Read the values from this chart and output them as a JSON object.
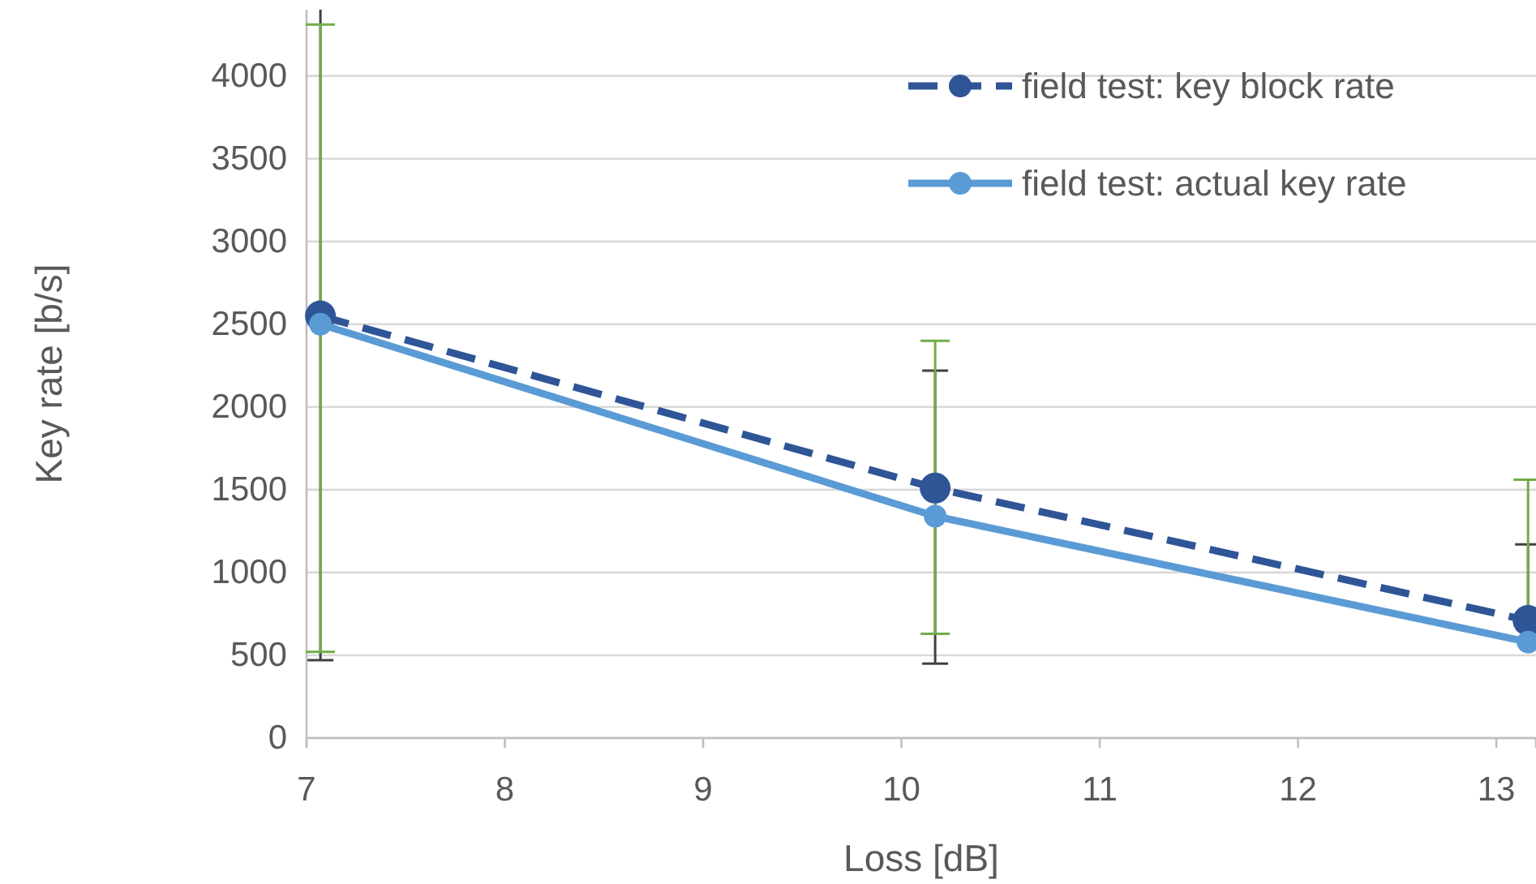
{
  "chart_data": {
    "type": "line",
    "xlabel": "Loss [dB]",
    "ylabel": "Key rate [b/s]",
    "x": [
      7.07,
      10.17,
      13.16
    ],
    "series": [
      {
        "name": "field test: key block rate",
        "color": "#2f5597",
        "values": [
          2550,
          1510,
          710
        ],
        "line_style": "dashed",
        "errors": [
          [
            470,
            4400
          ],
          [
            450,
            2220
          ],
          [
            710,
            1170
          ]
        ]
      },
      {
        "name": "field test: actual key rate",
        "color": "#5b9bd5",
        "values": [
          2500,
          1340,
          580
        ],
        "line_style": "solid",
        "errors": [
          [
            520,
            4310
          ],
          [
            630,
            2400
          ],
          [
            580,
            1560
          ]
        ]
      }
    ],
    "xlim": [
      7,
      13.2
    ],
    "xticks": [
      7,
      8,
      9,
      10,
      11,
      12,
      13
    ],
    "ylim": [
      0,
      4400
    ],
    "yticks": [
      0,
      500,
      1000,
      1500,
      2000,
      2500,
      3000,
      3500,
      4000
    ],
    "grid": "y",
    "legend": "top right",
    "marker": "circle"
  }
}
